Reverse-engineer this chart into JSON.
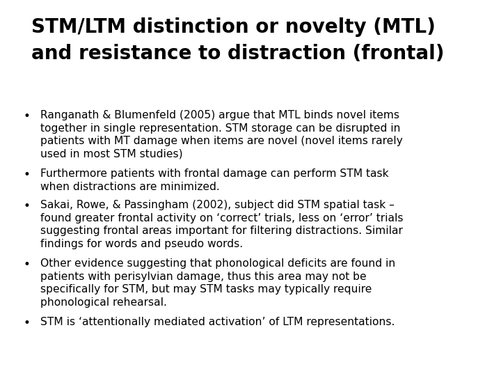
{
  "title_line1": "STM/LTM distinction or novelty (MTL)",
  "title_line2": "and resistance to distraction (frontal)",
  "bg_color": "#ffffff",
  "title_color": "#000000",
  "text_color": "#000000",
  "title_fontsize": 20,
  "body_fontsize": 11.2,
  "bullets": [
    "Ranganath & Blumenfeld (2005) argue that MTL binds novel items\ntogether in single representation. STM storage can be disrupted in\npatients with MT damage when items are novel (novel items rarely\nused in most STM studies)",
    "Furthermore patients with frontal damage can perform STM task\nwhen distractions are minimized.",
    "Sakai, Rowe, & Passingham (2002), subject did STM spatial task –\nfound greater frontal activity on ‘correct’ trials, less on ‘error’ trials\nsuggesting frontal areas important for filtering distractions. Similar\nfindings for words and pseudo words.",
    "Other evidence suggesting that phonological deficits are found in\npatients with perisylvian damage, thus this area may not be\nspecifically for STM, but may STM tasks may typically require\nphonological rehearsal.",
    "STM is ‘attentionally mediated activation’ of LTM representations."
  ],
  "bullet_line_counts": [
    4,
    2,
    4,
    4,
    1
  ]
}
